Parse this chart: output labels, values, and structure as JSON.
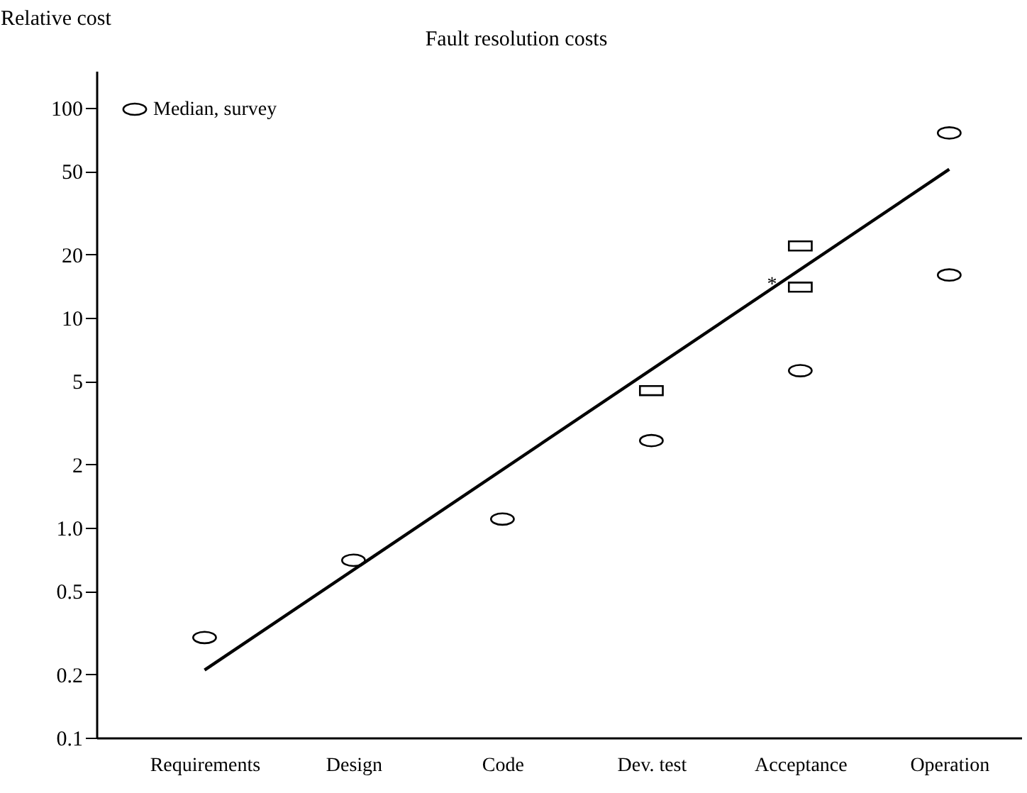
{
  "chart_data": {
    "type": "scatter",
    "title": "Fault resolution costs",
    "ylabel": "Relative cost",
    "categories": [
      "Requirements",
      "Design",
      "Code",
      "Dev. test",
      "Acceptance",
      "Operation"
    ],
    "series": [
      {
        "name": "Median, survey",
        "color": "#000000",
        "marker": "circle",
        "values": [
          0.3,
          0.7,
          1.1,
          2.6,
          5.6,
          null
        ]
      },
      {
        "color": "#000000",
        "marker": "circle",
        "x": [
          "Operation",
          "Operation"
        ],
        "values": [
          16,
          76
        ]
      },
      {
        "color": "#000000",
        "marker": "square",
        "x": [
          "Dev. test",
          "Acceptance",
          "Acceptance"
        ],
        "values": [
          4.5,
          22,
          14
        ]
      },
      {
        "type": "line",
        "color": "#000000",
        "x": [
          "Requirements",
          "Operation"
        ],
        "values": [
          0.21,
          51
        ]
      }
    ],
    "annotations": [
      {
        "text": "*",
        "x": "Acceptance",
        "y": 14
      }
    ],
    "log": "y",
    "ylim": [
      0.1,
      150
    ],
    "yticks": [
      0.1,
      0.2,
      0.5,
      {
        "value": 1,
        "label": "1.0"
      },
      2,
      5,
      10,
      20,
      50,
      100
    ],
    "legend": "top left"
  }
}
